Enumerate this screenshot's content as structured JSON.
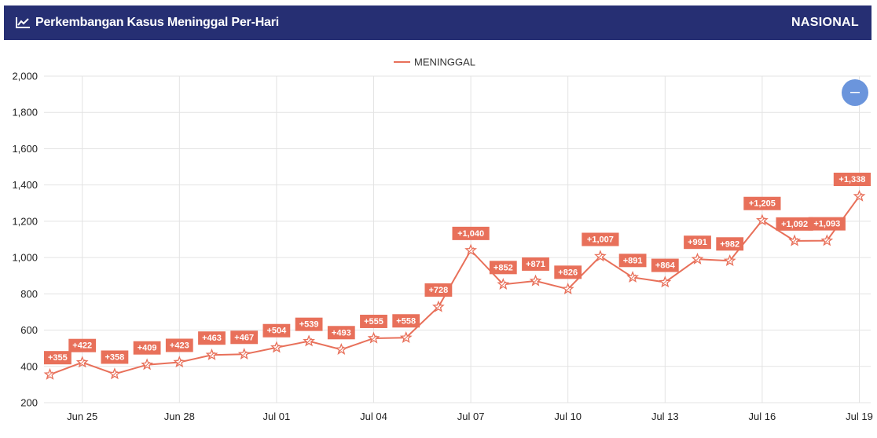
{
  "header": {
    "title": "Perkembangan Kasus Meninggal Per-Hari",
    "badge": "NASIONAL"
  },
  "colors": {
    "header_bg": "#262f73",
    "series": "#e8705a",
    "zoom_button": "#6b95dc"
  },
  "chart_data": {
    "type": "line",
    "legend": {
      "position": "top-center"
    },
    "grid": true,
    "ylim": [
      200,
      2000
    ],
    "yticks": [
      200,
      400,
      600,
      800,
      1000,
      1200,
      1400,
      1600,
      1800,
      2000
    ],
    "ytick_labels": [
      "200",
      "400",
      "600",
      "800",
      "1,000",
      "1,200",
      "1,400",
      "1,600",
      "1,800",
      "2,000"
    ],
    "x": [
      "Jun 24",
      "Jun 25",
      "Jun 26",
      "Jun 27",
      "Jun 28",
      "Jun 29",
      "Jun 30",
      "Jul 01",
      "Jul 02",
      "Jul 03",
      "Jul 04",
      "Jul 05",
      "Jul 06",
      "Jul 07",
      "Jul 08",
      "Jul 09",
      "Jul 10",
      "Jul 11",
      "Jul 12",
      "Jul 13",
      "Jul 14",
      "Jul 15",
      "Jul 16",
      "Jul 17",
      "Jul 18",
      "Jul 19"
    ],
    "xtick_labels": [
      "Jun 25",
      "Jun 28",
      "Jul 01",
      "Jul 04",
      "Jul 07",
      "Jul 10",
      "Jul 13",
      "Jul 16",
      "Jul 19"
    ],
    "series": [
      {
        "name": "MENINGGAL",
        "values": [
          355,
          422,
          358,
          409,
          423,
          463,
          467,
          504,
          539,
          493,
          555,
          558,
          728,
          1040,
          852,
          871,
          826,
          1007,
          891,
          864,
          991,
          982,
          1205,
          1092,
          1093,
          1338
        ],
        "labels": [
          "+355",
          "+422",
          "+358",
          "+409",
          "+423",
          "+463",
          "+467",
          "+504",
          "+539",
          "+493",
          "+555",
          "+558",
          "+728",
          "+1,040",
          "+852",
          "+871",
          "+826",
          "+1,007",
          "+891",
          "+864",
          "+991",
          "+982",
          "+1,205",
          "+1,092",
          "+1,093",
          "+1,338"
        ]
      }
    ]
  }
}
